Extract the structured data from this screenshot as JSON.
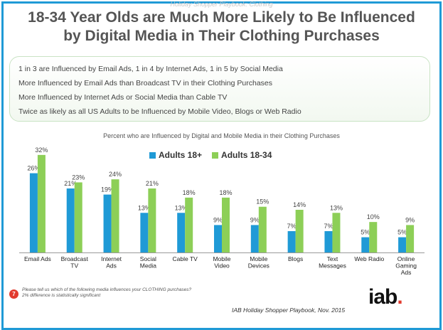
{
  "header": {
    "watermark": "Holiday Shopper Playbook: Clothing",
    "title_line1": "18-34 Year Olds are Much More Likely to Be Influenced",
    "title_line2": "by Digital Media in Their Clothing Purchases"
  },
  "bullets": [
    "1 in 3 are Influenced by Email Ads, 1 in 4 by Internet Ads, 1 in 5 by Social Media",
    "More Influenced by Email Ads than Broadcast TV in their Clothing Purchases",
    "More Influenced by Internet Ads or Social Media than Cable TV",
    "Twice as likely as all US Adults to be Influenced by Mobile Video, Blogs or Web Radio"
  ],
  "chart_data": {
    "type": "bar",
    "title": "Percent who are Influenced by Digital and Mobile Media in their Clothing Purchases",
    "categories": [
      [
        "Email Ads"
      ],
      [
        "Broadcast",
        "TV"
      ],
      [
        "Internet",
        "Ads"
      ],
      [
        "Social",
        "Media"
      ],
      [
        "Cable TV"
      ],
      [
        "Mobile",
        "Video"
      ],
      [
        "Mobile",
        "Devices"
      ],
      [
        "Blogs"
      ],
      [
        "Text",
        "Messages"
      ],
      [
        "Web Radio"
      ],
      [
        "Online",
        "Gaming",
        "Ads"
      ]
    ],
    "series": [
      {
        "name": "Adults 18+",
        "color": "#1f9ad6",
        "values": [
          26,
          21,
          19,
          13,
          13,
          9,
          9,
          7,
          7,
          5,
          5
        ]
      },
      {
        "name": "Adults 18-34",
        "color": "#8dcf57",
        "values": [
          32,
          23,
          24,
          21,
          18,
          18,
          15,
          14,
          13,
          10,
          9
        ]
      }
    ],
    "value_suffix": "%",
    "ylim": [
      0,
      35
    ],
    "legend": "top",
    "grid": false
  },
  "footer": {
    "page_number": "7",
    "footnote_line1": "Please tell us which of the following media influences your CLOTHING purchases?",
    "footnote_line2": "2% difference is statistically significant",
    "source": "IAB Holiday Shopper Playbook, Nov. 2015",
    "logo_text": "iab",
    "logo_dot": "."
  }
}
